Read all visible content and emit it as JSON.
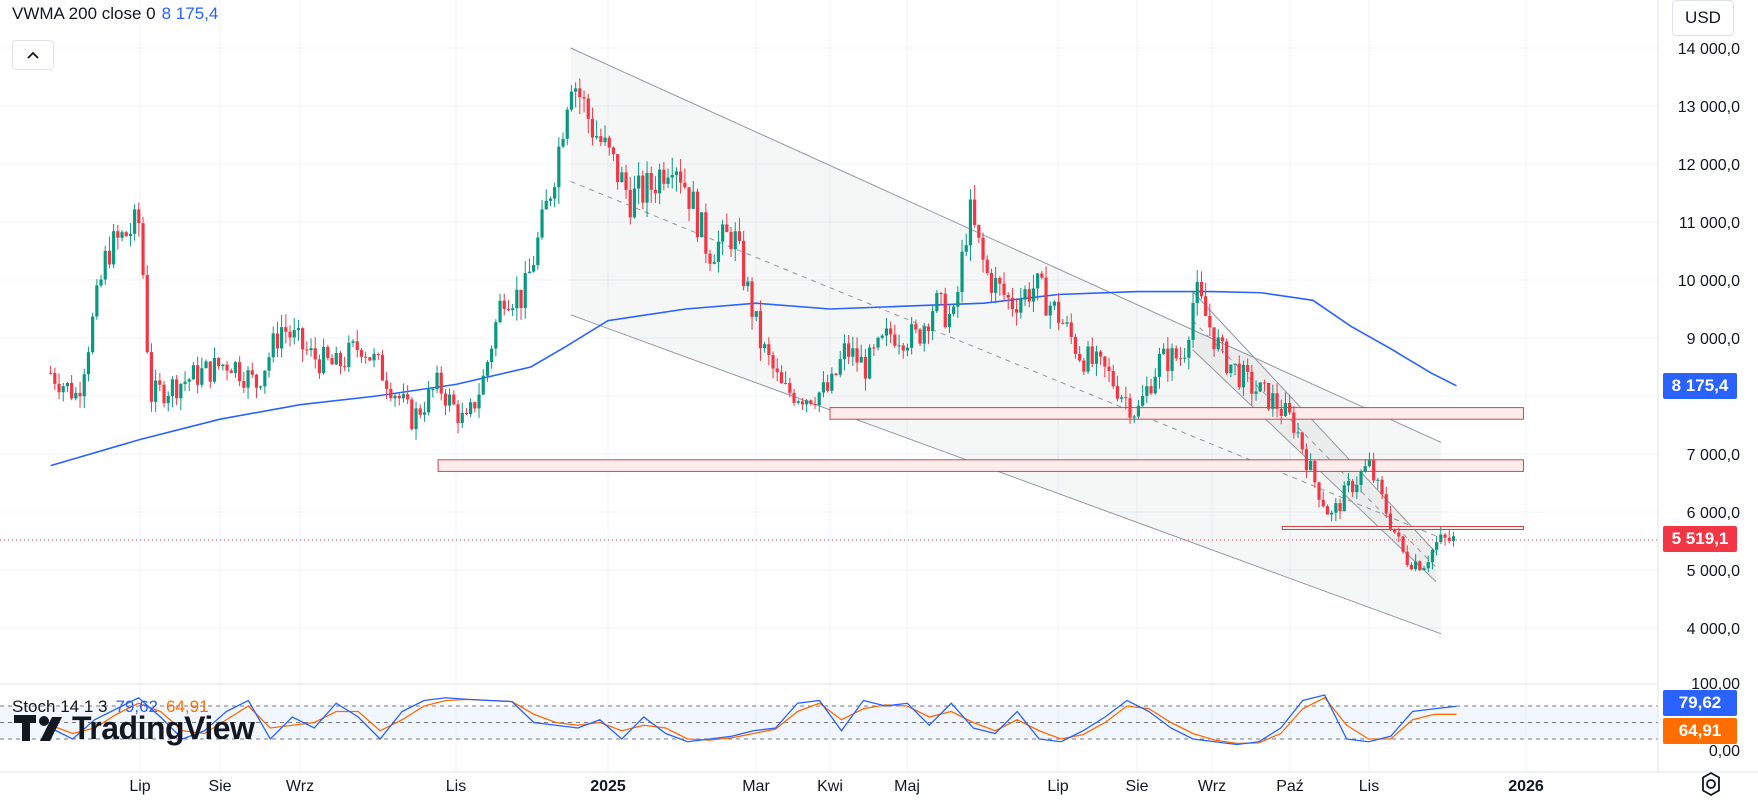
{
  "legend": {
    "indicator_label": "VWMA 200 close 0",
    "indicator_value": "8 175,4"
  },
  "currency": "USD",
  "price_axis": {
    "labels": [
      "14 000,0",
      "13 000,0",
      "12 000,0",
      "11 000,0",
      "10 000,0",
      "9 000,0",
      "7 000,0",
      "6 000,0",
      "5 000,0",
      "4 000,0"
    ],
    "vwma_badge": "8 175,4",
    "last_price_badge": "5 519,1"
  },
  "oscillator": {
    "label": "Stoch 14 1 3",
    "k_value": "79,62",
    "d_value": "64,91",
    "axis_labels": [
      "100,00",
      "0,00"
    ],
    "k_badge": "79,62",
    "d_badge": "64,91",
    "levels": [
      80,
      50,
      20
    ]
  },
  "time_axis": {
    "labels": [
      "Lip",
      "Sie",
      "Wrz",
      "Lis",
      "2025",
      "Mar",
      "Kwi",
      "Maj",
      "Lip",
      "Sie",
      "Wrz",
      "Paź",
      "Lis",
      "2026"
    ],
    "bold": [
      "2025",
      "2026"
    ]
  },
  "watermark": "TradingView",
  "colors": {
    "up": "#089981",
    "down": "#f23645",
    "vwma": "#2962ff",
    "stoch_k": "#2962ff",
    "stoch_d": "#ff6d00",
    "last_price": "#f23645",
    "zone_fill": "#fdecec",
    "zone_stroke": "#c44a4a"
  },
  "chart_data": {
    "type": "line",
    "title": "",
    "xlabel": "",
    "ylabel": "",
    "ylim": [
      3000,
      14400
    ],
    "last_price": 5519.1,
    "price_series": {
      "name": "",
      "x": [
        "2024-06-01",
        "2024-06-10",
        "2024-06-20",
        "2024-07-01",
        "2024-07-05",
        "2024-07-15",
        "2024-07-25",
        "2024-08-05",
        "2024-08-15",
        "2024-08-25",
        "2024-09-05",
        "2024-09-15",
        "2024-09-25",
        "2024-10-05",
        "2024-10-15",
        "2024-10-25",
        "2024-11-05",
        "2024-11-12",
        "2024-11-20",
        "2024-11-28",
        "2024-12-06",
        "2024-12-12",
        "2024-12-17",
        "2024-12-25",
        "2025-01-03",
        "2025-01-10",
        "2025-01-18",
        "2025-01-27",
        "2025-02-03",
        "2025-02-10",
        "2025-02-20",
        "2025-03-03",
        "2025-03-12",
        "2025-03-22",
        "2025-04-01",
        "2025-04-07",
        "2025-04-15",
        "2025-04-25",
        "2025-05-05",
        "2025-05-12",
        "2025-05-20",
        "2025-05-26",
        "2025-06-02",
        "2025-06-12",
        "2025-06-22",
        "2025-07-01",
        "2025-07-10",
        "2025-07-20",
        "2025-08-01",
        "2025-08-10",
        "2025-08-20",
        "2025-08-25",
        "2025-09-05",
        "2025-09-15",
        "2025-09-25",
        "2025-10-03",
        "2025-10-10",
        "2025-10-17",
        "2025-10-24",
        "2025-11-01",
        "2025-11-07",
        "2025-11-15",
        "2025-11-22",
        "2025-11-28",
        "2025-12-05"
      ],
      "values": [
        8400,
        8000,
        10500,
        11000,
        8000,
        8200,
        8400,
        8600,
        8200,
        9200,
        8700,
        8500,
        8900,
        8300,
        7600,
        8200,
        7500,
        8300,
        9800,
        9700,
        11000,
        12200,
        13600,
        12700,
        12000,
        11400,
        11600,
        12200,
        11400,
        10500,
        10800,
        8900,
        8100,
        8000,
        8100,
        8800,
        8500,
        9100,
        9000,
        9600,
        9300,
        11200,
        10100,
        9600,
        9900,
        9400,
        8700,
        8400,
        7700,
        8600,
        8700,
        9800,
        8700,
        8200,
        7900,
        7500,
        6600,
        5900,
        6400,
        6800,
        6100,
        5200,
        5100,
        5500,
        5519.1
      ]
    },
    "vwma_series": {
      "name": "VWMA 200 close 0",
      "x": [
        "2024-06-01",
        "2024-07-01",
        "2024-08-01",
        "2024-09-01",
        "2024-10-01",
        "2024-11-01",
        "2024-12-01",
        "2024-12-15",
        "2025-01-01",
        "2025-02-01",
        "2025-03-01",
        "2025-04-01",
        "2025-05-01",
        "2025-06-01",
        "2025-07-01",
        "2025-08-01",
        "2025-09-01",
        "2025-09-20",
        "2025-10-10",
        "2025-10-25",
        "2025-11-10",
        "2025-11-25",
        "2025-12-05"
      ],
      "values": [
        6800,
        7250,
        7600,
        7850,
        8000,
        8200,
        8500,
        8850,
        9300,
        9500,
        9600,
        9500,
        9550,
        9600,
        9750,
        9800,
        9800,
        9780,
        9650,
        9200,
        8800,
        8400,
        8175.4
      ]
    },
    "channels": [
      {
        "name": "",
        "x": [
          "2024-12-17",
          "2025-11-29"
        ],
        "upper": [
          14000,
          7200
        ],
        "lower": [
          9400,
          3900
        ]
      },
      {
        "name": "",
        "x": [
          "2025-08-24",
          "2025-11-27"
        ],
        "upper": [
          9800,
          5300
        ],
        "lower": [
          8800,
          4800
        ]
      }
    ],
    "zones": [
      {
        "from": "2025-04-01",
        "to": "2025-12-31",
        "low": 7600,
        "high": 7800
      },
      {
        "from": "2024-10-25",
        "to": "2025-12-31",
        "low": 6700,
        "high": 6900
      },
      {
        "from": "2025-09-28",
        "to": "2025-12-31",
        "low": 5700,
        "high": 5750
      }
    ],
    "stochastic": {
      "name": "Stoch 14 1 3",
      "ylim": [
        0,
        100
      ],
      "k": [
        40,
        20,
        55,
        75,
        95,
        60,
        20,
        35,
        70,
        90,
        20,
        60,
        40,
        85,
        60,
        20,
        70,
        90,
        95,
        92,
        90,
        88,
        50,
        45,
        40,
        55,
        20,
        60,
        30,
        15,
        20,
        25,
        35,
        40,
        85,
        90,
        35,
        90,
        80,
        85,
        45,
        85,
        40,
        30,
        70,
        20,
        15,
        35,
        60,
        90,
        70,
        40,
        20,
        15,
        10,
        15,
        40,
        90,
        100,
        20,
        15,
        25,
        70,
        75,
        79.62
      ],
      "d": [
        45,
        30,
        40,
        65,
        85,
        70,
        35,
        30,
        55,
        80,
        40,
        45,
        50,
        70,
        70,
        35,
        55,
        80,
        90,
        92,
        90,
        88,
        65,
        50,
        45,
        50,
        35,
        45,
        40,
        20,
        18,
        22,
        30,
        38,
        70,
        85,
        55,
        75,
        82,
        80,
        60,
        70,
        50,
        35,
        55,
        35,
        20,
        28,
        50,
        80,
        75,
        50,
        30,
        18,
        12,
        13,
        30,
        75,
        95,
        45,
        20,
        20,
        55,
        65,
        64.91
      ]
    }
  }
}
